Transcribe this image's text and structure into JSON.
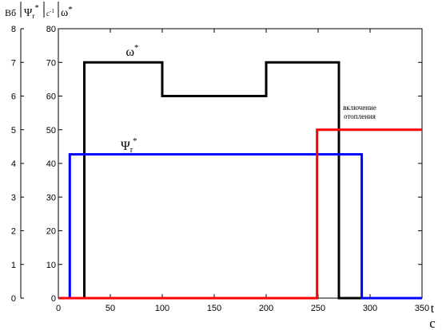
{
  "chart_data": {
    "type": "line",
    "xlim": [
      0,
      350
    ],
    "x_ticks": [
      "0",
      "50",
      "100",
      "150",
      "200",
      "250",
      "300",
      "350"
    ],
    "x_tick_values": [
      0,
      50,
      100,
      150,
      200,
      250,
      300,
      350
    ],
    "xlabel": "t",
    "xunit": "c",
    "left_axis": {
      "unit": "Вб",
      "symbol": "Ψ",
      "symbol_sub": "r",
      "symbol_sup": "*",
      "ylim": [
        0,
        8
      ],
      "ticks": [
        "0",
        "1",
        "2",
        "3",
        "4",
        "5",
        "6",
        "7",
        "8"
      ],
      "tick_values": [
        0,
        1,
        2,
        3,
        4,
        5,
        6,
        7,
        8
      ]
    },
    "right_axis": {
      "unit": "c",
      "unit_sup": "-1",
      "symbol": "ω",
      "symbol_sup": "*",
      "ylim": [
        0,
        80
      ],
      "ticks": [
        "0",
        "10",
        "20",
        "30",
        "40",
        "50",
        "60",
        "70",
        "80"
      ],
      "tick_values": [
        0,
        10,
        20,
        30,
        40,
        50,
        60,
        70,
        80
      ]
    },
    "grid": false,
    "series": [
      {
        "name": "ω*",
        "color": "#000000",
        "axis": "right",
        "points": [
          [
            0,
            0
          ],
          [
            25,
            0
          ],
          [
            25,
            70
          ],
          [
            100,
            70
          ],
          [
            100,
            60
          ],
          [
            200,
            60
          ],
          [
            200,
            70
          ],
          [
            270,
            70
          ],
          [
            270,
            0
          ],
          [
            350,
            0
          ]
        ]
      },
      {
        "name": "Ψr*",
        "color": "#0000ff",
        "axis": "left",
        "points": [
          [
            0,
            0
          ],
          [
            11,
            0
          ],
          [
            11,
            4.27
          ],
          [
            292,
            4.27
          ],
          [
            292,
            0
          ],
          [
            350,
            0
          ]
        ]
      },
      {
        "name": "",
        "color": "#ff0000",
        "axis": "left",
        "points": [
          [
            0,
            0
          ],
          [
            249,
            0
          ],
          [
            249,
            5
          ],
          [
            350,
            5
          ]
        ]
      }
    ],
    "annotations": [
      {
        "line1": "включение",
        "line2": "отопления",
        "x": 290,
        "y": 5.35
      }
    ],
    "series_labels": [
      {
        "text": "ω",
        "sup": "*",
        "x": 65,
        "y": 7.2
      },
      {
        "text": "Ψ",
        "sub": "r",
        "sup": "*",
        "x": 60,
        "y": 4.4
      }
    ]
  }
}
